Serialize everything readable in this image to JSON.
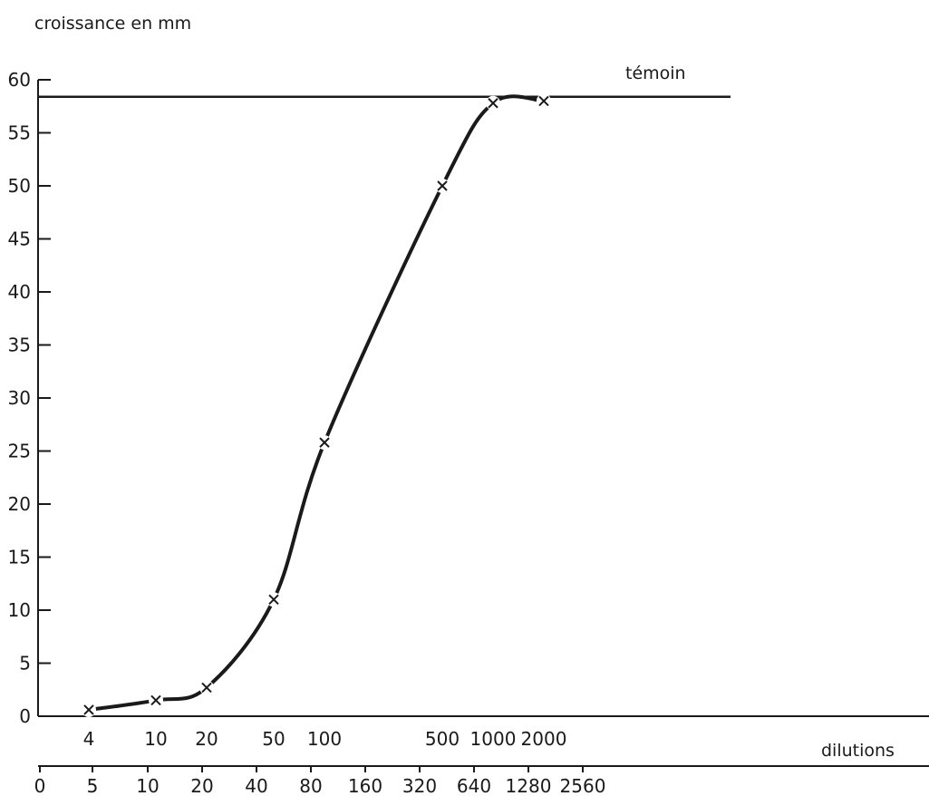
{
  "chart_data": {
    "type": "line",
    "ylabel": "croissance en mm",
    "xlabel": "dilutions",
    "ylim": [
      0,
      60
    ],
    "yticks": [
      "0",
      "5",
      "10",
      "15",
      "20",
      "25",
      "30",
      "35",
      "40",
      "45",
      "50",
      "55",
      "60"
    ],
    "x_scale": "log",
    "x_ticks_primary": [
      "4",
      "10",
      "20",
      "50",
      "100",
      "500",
      "1000",
      "2000"
    ],
    "x_ticks_secondary": [
      "0",
      "5",
      "10",
      "20",
      "40",
      "80",
      "160",
      "320",
      "640",
      "1280",
      "2560"
    ],
    "reference_line": {
      "label": "témoin",
      "value": 58.4
    },
    "series": [
      {
        "marker": "x",
        "points": [
          {
            "x": 4,
            "y": 0.6
          },
          {
            "x": 10,
            "y": 1.5
          },
          {
            "x": 20,
            "y": 2.7
          },
          {
            "x": 50,
            "y": 11
          },
          {
            "x": 100,
            "y": 25.8
          },
          {
            "x": 500,
            "y": 50
          },
          {
            "x": 1000,
            "y": 57.8
          },
          {
            "x": 2000,
            "y": 58
          }
        ]
      }
    ],
    "grid": false
  }
}
